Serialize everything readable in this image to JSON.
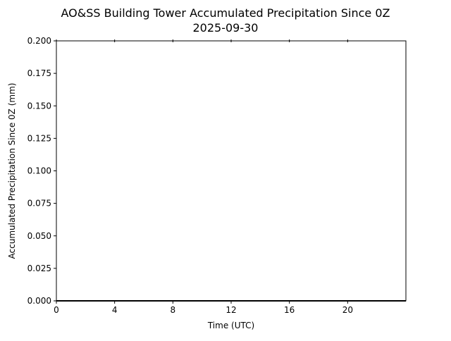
{
  "chart_data": {
    "type": "line",
    "title": "AO&SS Building Tower Accumulated Precipitation Since 0Z",
    "subtitle": "2025-09-30",
    "xlabel": "Time (UTC)",
    "ylabel": "Accumulated Precipitation Since 0Z (mm)",
    "xlim": [
      0,
      24
    ],
    "ylim": [
      0,
      0.2
    ],
    "xticks": [
      "0",
      "4",
      "8",
      "12",
      "16",
      "20"
    ],
    "yticks": [
      "0.000",
      "0.025",
      "0.050",
      "0.075",
      "0.100",
      "0.125",
      "0.150",
      "0.175",
      "0.200"
    ],
    "grid": false,
    "series": [
      {
        "x": [
          0,
          24
        ],
        "y": [
          0,
          0
        ],
        "color": "#000000"
      }
    ]
  }
}
